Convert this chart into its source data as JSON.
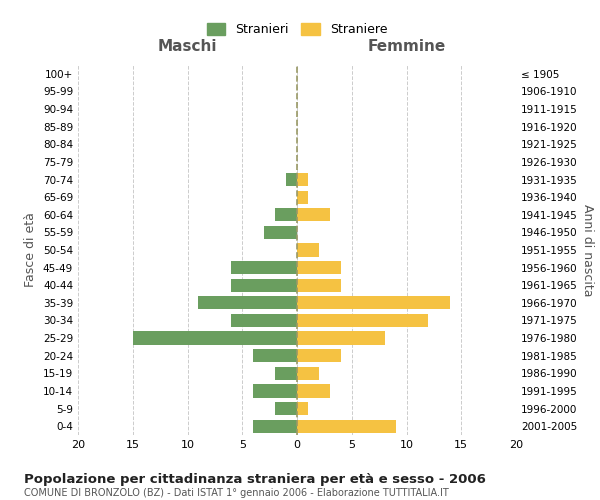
{
  "age_groups": [
    "0-4",
    "5-9",
    "10-14",
    "15-19",
    "20-24",
    "25-29",
    "30-34",
    "35-39",
    "40-44",
    "45-49",
    "50-54",
    "55-59",
    "60-64",
    "65-69",
    "70-74",
    "75-79",
    "80-84",
    "85-89",
    "90-94",
    "95-99",
    "100+"
  ],
  "birth_years": [
    "2001-2005",
    "1996-2000",
    "1991-1995",
    "1986-1990",
    "1981-1985",
    "1976-1980",
    "1971-1975",
    "1966-1970",
    "1961-1965",
    "1956-1960",
    "1951-1955",
    "1946-1950",
    "1941-1945",
    "1936-1940",
    "1931-1935",
    "1926-1930",
    "1921-1925",
    "1916-1920",
    "1911-1915",
    "1906-1910",
    "≤ 1905"
  ],
  "males": [
    4,
    2,
    4,
    2,
    4,
    15,
    6,
    9,
    6,
    6,
    0,
    3,
    2,
    0,
    1,
    0,
    0,
    0,
    0,
    0,
    0
  ],
  "females": [
    9,
    1,
    3,
    2,
    4,
    8,
    12,
    14,
    4,
    4,
    2,
    0,
    3,
    1,
    1,
    0,
    0,
    0,
    0,
    0,
    0
  ],
  "male_color": "#6a9e5f",
  "female_color": "#f5c242",
  "title": "Popolazione per cittadinanza straniera per età e sesso - 2006",
  "subtitle": "COMUNE DI BRONZOLO (BZ) - Dati ISTAT 1° gennaio 2006 - Elaborazione TUTTITALIA.IT",
  "legend_male": "Stranieri",
  "legend_female": "Straniere",
  "xlabel_left": "Maschi",
  "xlabel_right": "Femmine",
  "ylabel_left": "Fasce di età",
  "ylabel_right": "Anni di nascita",
  "xlim": 20,
  "bg_color": "#ffffff",
  "grid_color": "#cccccc",
  "bar_height": 0.75
}
